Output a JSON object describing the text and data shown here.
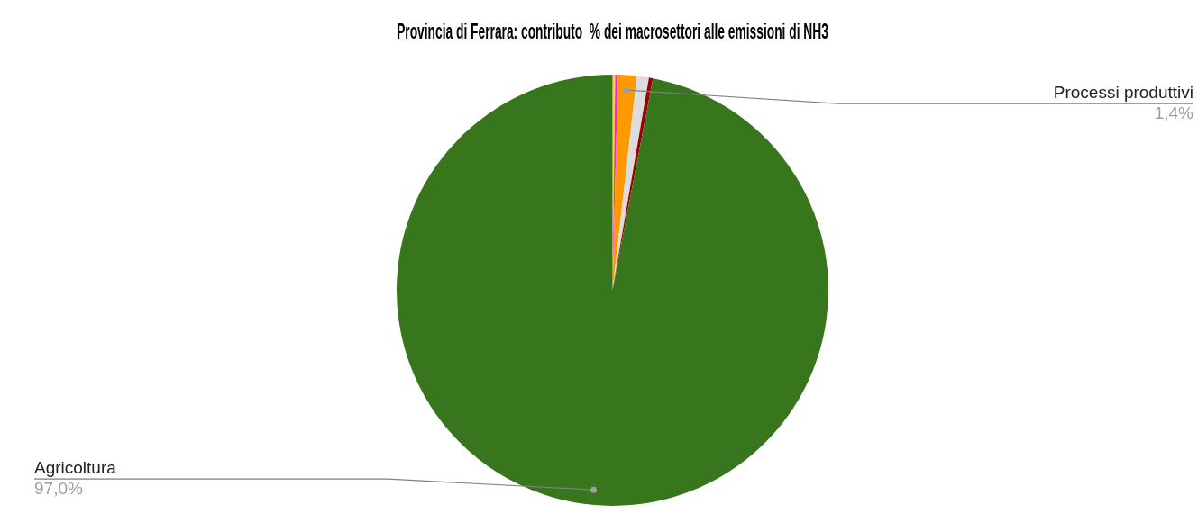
{
  "chart_data": {
    "type": "pie",
    "title": "Provincia di Ferrara: contributo  % dei macrosettori alle emissioni di NH3",
    "categories": [
      null,
      null,
      "Processi produttivi",
      null,
      null,
      "Agricoltura"
    ],
    "values": [
      0.2,
      0.2,
      1.4,
      0.9,
      0.3,
      97.0
    ],
    "colors": [
      "#f6d23a",
      "#f02cd0",
      "#ff9900",
      "#dcdcdc",
      "#990000",
      "#38761d"
    ],
    "value_labels": [
      null,
      null,
      "1,4%",
      null,
      null,
      "97,0%"
    ],
    "legend": false
  }
}
